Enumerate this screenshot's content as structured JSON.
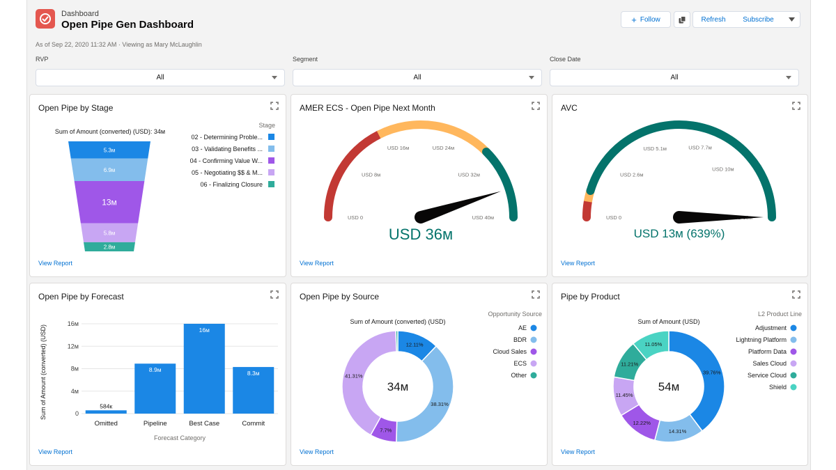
{
  "header": {
    "breadcrumb": "Dashboard",
    "title": "Open Pipe Gen Dashboard",
    "meta": "As of Sep 22, 2020 11:32 AM · Viewing as Mary McLaughlin",
    "buttons": {
      "follow": "Follow",
      "refresh": "Refresh",
      "subscribe": "Subscribe"
    },
    "icons": {
      "app": "dashboard-gauge-icon",
      "follow": "plus-icon",
      "copy": "copy-icon",
      "more": "chevron-down-icon"
    },
    "colors": {
      "app_icon": "#e4574f",
      "link": "#0070d2"
    }
  },
  "filters": [
    {
      "label": "RVP",
      "value": "All"
    },
    {
      "label": "Segment",
      "value": "All"
    },
    {
      "label": "Close Date",
      "value": "All"
    }
  ],
  "cards": {
    "stage": {
      "title": "Open Pipe by Stage",
      "view_report": "View Report",
      "chart_data": {
        "type": "funnel",
        "title": "Sum of Amount (converted) (USD): 34м",
        "legend_title": "Stage",
        "legend_position": "right",
        "series": [
          {
            "name": "02 - Determining Proble...",
            "value": 5.3,
            "label": "5.3м",
            "color": "#1b87e5"
          },
          {
            "name": "03 - Validating Benefits ...",
            "value": 6.9,
            "label": "6.9м",
            "color": "#83bdec"
          },
          {
            "name": "04 - Confirming Value W...",
            "value": 13,
            "label": "13м",
            "color": "#9f57e8"
          },
          {
            "name": "05 - Negotiating $$ & M...",
            "value": 5.8,
            "label": "5.8м",
            "color": "#c8a6f3"
          },
          {
            "name": "06 - Finalizing Closure",
            "value": 2.8,
            "label": "2.8м",
            "color": "#2fac9b"
          }
        ]
      }
    },
    "amer": {
      "title": "AMER ECS - Open Pipe Next Month",
      "view_report": "View Report",
      "chart_data": {
        "type": "gauge",
        "min": 0,
        "max": 40,
        "value": 36,
        "value_label": "USD 36м",
        "ticks": [
          {
            "v": 0,
            "label": "USD 0"
          },
          {
            "v": 8,
            "label": "USD 8м"
          },
          {
            "v": 16,
            "label": "USD 16м"
          },
          {
            "v": 24,
            "label": "USD 24м"
          },
          {
            "v": 32,
            "label": "USD 32м"
          },
          {
            "v": 40,
            "label": "USD 40м"
          }
        ],
        "bands": [
          {
            "from": 0,
            "to": 14,
            "color": "#c23934"
          },
          {
            "from": 14,
            "to": 30,
            "color": "#ffb75d"
          },
          {
            "from": 30,
            "to": 40,
            "color": "#04736b"
          }
        ],
        "value_color": "#04736b"
      }
    },
    "avc": {
      "title": "AVC",
      "view_report": "View Report",
      "chart_data": {
        "type": "gauge",
        "min": 0,
        "max": 13,
        "value": 13,
        "value_label": "USD 13м (639%)",
        "ticks": [
          {
            "v": 0,
            "label": "USD 0"
          },
          {
            "v": 2.6,
            "label": "USD 2.6м"
          },
          {
            "v": 5.1,
            "label": "USD 5.1м"
          },
          {
            "v": 7.7,
            "label": "USD 7.7м"
          },
          {
            "v": 10,
            "label": "USD 10м"
          },
          {
            "v": 13,
            "label": "USD 13м"
          }
        ],
        "bands": [
          {
            "from": 0,
            "to": 0.7,
            "color": "#c23934"
          },
          {
            "from": 0.7,
            "to": 1.2,
            "color": "#ffb75d"
          },
          {
            "from": 1.2,
            "to": 13,
            "color": "#04736b"
          }
        ],
        "value_color": "#04736b"
      }
    },
    "forecast": {
      "title": "Open Pipe by Forecast",
      "view_report": "View Report",
      "chart_data": {
        "type": "bar",
        "categories": [
          "Omitted",
          "Pipeline",
          "Best Case",
          "Commit"
        ],
        "values": [
          0.584,
          8.9,
          16,
          8.3
        ],
        "value_labels": [
          "584к",
          "8.9м",
          "16м",
          "8.3м"
        ],
        "xlabel": "Forecast Category",
        "ylabel": "Sum of Amount (converted) (USD)",
        "ylim": [
          0,
          16
        ],
        "yticks": [
          {
            "v": 0,
            "label": "0"
          },
          {
            "v": 4,
            "label": "4м"
          },
          {
            "v": 8,
            "label": "8м"
          },
          {
            "v": 12,
            "label": "12м"
          },
          {
            "v": 16,
            "label": "16м"
          }
        ],
        "grid": true,
        "color": "#1b87e5"
      }
    },
    "source": {
      "title": "Open Pipe by Source",
      "view_report": "View Report",
      "chart_data": {
        "type": "donut",
        "title": "Sum of Amount (converted) (USD)",
        "center_label": "34м",
        "legend_title": "Opportunity Source",
        "legend_position": "right",
        "series": [
          {
            "name": "AE",
            "value": 12.11,
            "label": "12.11%",
            "color": "#1b87e5"
          },
          {
            "name": "BDR",
            "value": 38.31,
            "label": "38.31%",
            "color": "#83bdec"
          },
          {
            "name": "Cloud Sales",
            "value": 7.7,
            "label": "7.7%",
            "color": "#9f57e8"
          },
          {
            "name": "ECS",
            "value": 41.31,
            "label": "41.31%",
            "color": "#c8a6f3"
          },
          {
            "name": "Other",
            "value": 0.57,
            "label": "",
            "color": "#2fac9b"
          }
        ]
      }
    },
    "product": {
      "title": "Pipe by Product",
      "view_report": "View Report",
      "chart_data": {
        "type": "donut",
        "title": "Sum of Amount (USD)",
        "center_label": "54м",
        "legend_title": "L2 Product Line",
        "legend_position": "right",
        "series": [
          {
            "name": "Adjustment",
            "value": 39.76,
            "label": "39.76%",
            "color": "#1b87e5"
          },
          {
            "name": "Lightning Platform",
            "value": 14.31,
            "label": "14.31%",
            "color": "#83bdec"
          },
          {
            "name": "Platform Data",
            "value": 12.22,
            "label": "12.22%",
            "color": "#9f57e8"
          },
          {
            "name": "Sales Cloud",
            "value": 11.45,
            "label": "11.45%",
            "color": "#c8a6f3"
          },
          {
            "name": "Service Cloud",
            "value": 11.21,
            "label": "11.21%",
            "color": "#2fac9b"
          },
          {
            "name": "Shield",
            "value": 11.05,
            "label": "11.05%",
            "color": "#4ad3c3"
          }
        ]
      }
    }
  }
}
